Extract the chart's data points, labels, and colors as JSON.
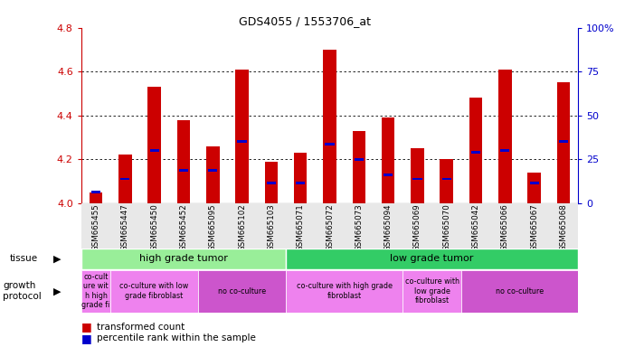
{
  "title": "GDS4055 / 1553706_at",
  "samples": [
    "GSM665455",
    "GSM665447",
    "GSM665450",
    "GSM665452",
    "GSM665095",
    "GSM665102",
    "GSM665103",
    "GSM665071",
    "GSM665072",
    "GSM665073",
    "GSM665094",
    "GSM665069",
    "GSM665070",
    "GSM665042",
    "GSM665066",
    "GSM665067",
    "GSM665068"
  ],
  "red_values": [
    4.05,
    4.22,
    4.53,
    4.38,
    4.26,
    4.61,
    4.19,
    4.23,
    4.7,
    4.33,
    4.39,
    4.25,
    4.2,
    4.48,
    4.61,
    4.14,
    4.55
  ],
  "blue_values": [
    4.05,
    4.11,
    4.24,
    4.15,
    4.15,
    4.28,
    4.09,
    4.09,
    4.27,
    4.2,
    4.13,
    4.11,
    4.11,
    4.23,
    4.24,
    4.09,
    4.28
  ],
  "ylim": [
    4.0,
    4.8
  ],
  "yticks": [
    4.0,
    4.2,
    4.4,
    4.6,
    4.8
  ],
  "right_yticks": [
    0,
    25,
    50,
    75,
    100
  ],
  "right_ytick_labels": [
    "0",
    "25",
    "50",
    "75",
    "100%"
  ],
  "bar_color": "#CC0000",
  "blue_color": "#0000CC",
  "axis_color": "#CC0000",
  "right_axis_color": "#0000CC",
  "tissue_high_color": "#99EE99",
  "tissue_low_color": "#33CC66",
  "growth_light_color": "#EE82EE",
  "growth_dark_color": "#CC55CC"
}
